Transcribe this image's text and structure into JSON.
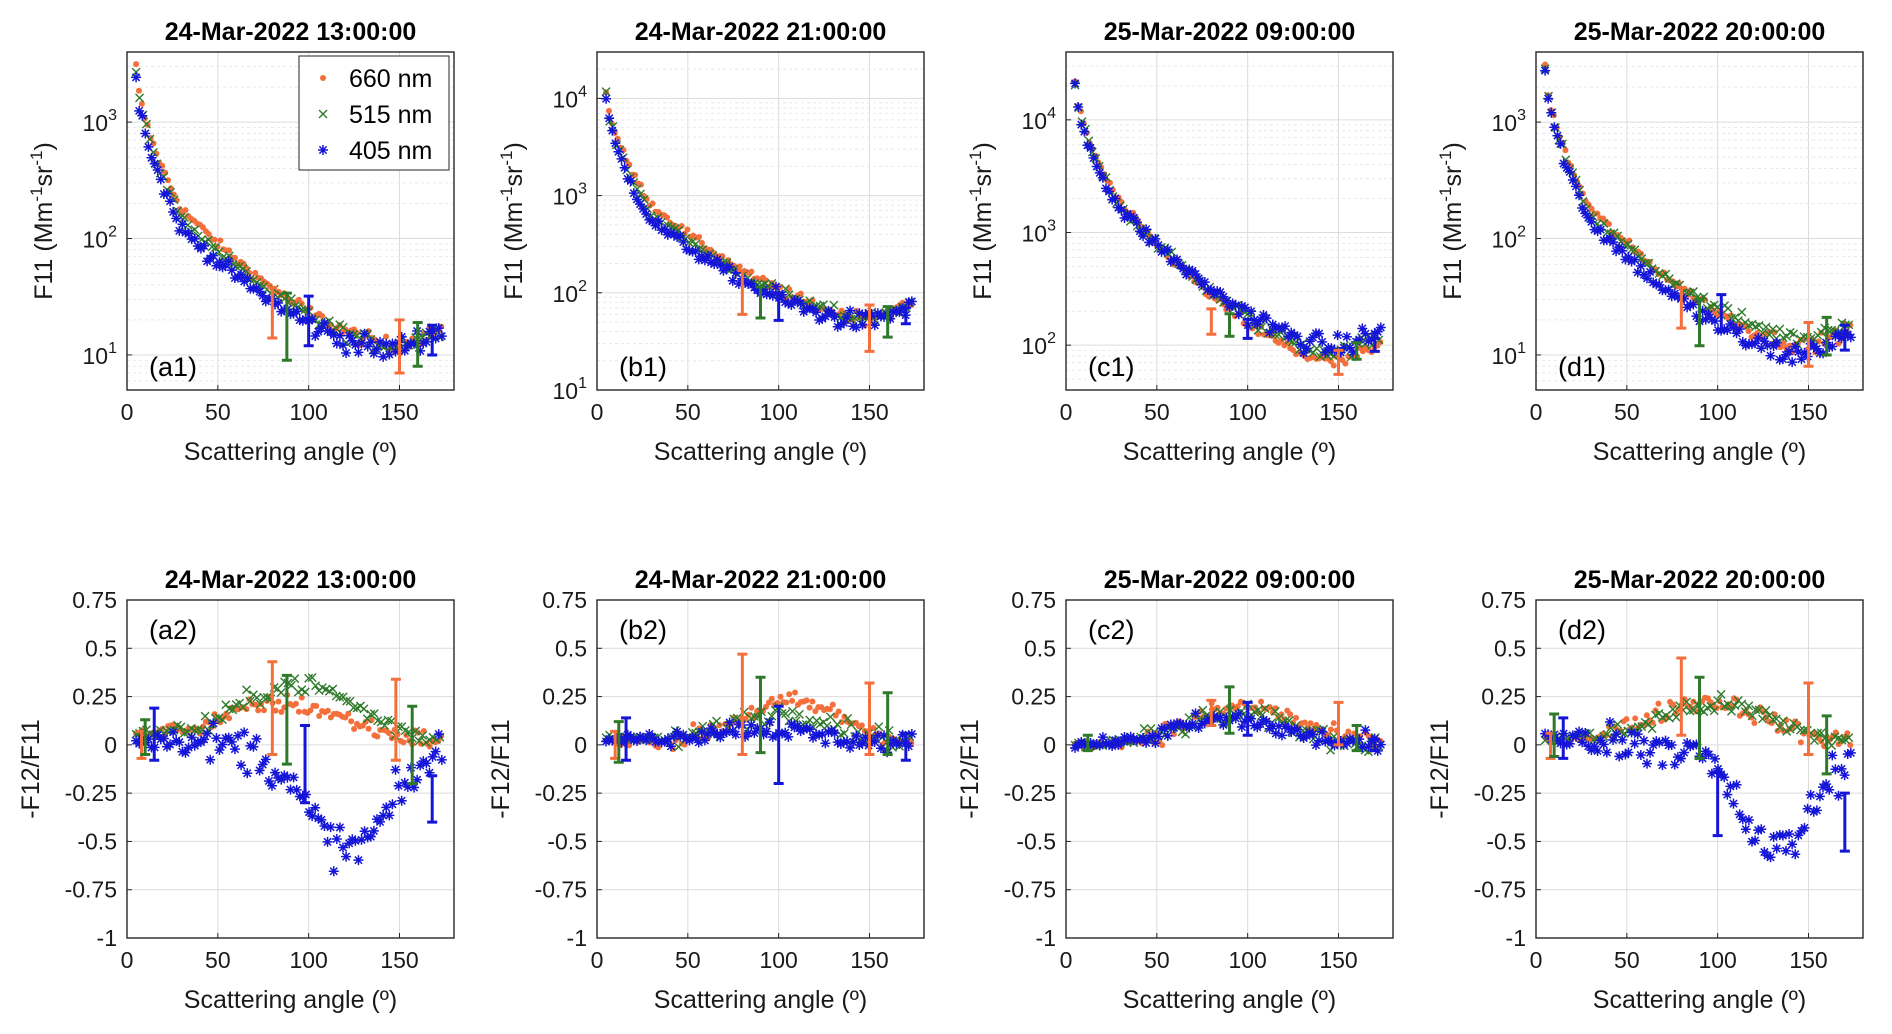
{
  "colors": {
    "660": "#f46f3b",
    "515": "#2f7a2a",
    "405": "#1515d8"
  },
  "legend": {
    "placement": "inside top-right of panel a1",
    "entries": [
      {
        "label": "660 nm",
        "marker": "dot",
        "color": "#f46f3b"
      },
      {
        "label": "515 nm",
        "marker": "x",
        "color": "#2f7a2a"
      },
      {
        "label": "405 nm",
        "marker": "asterisk",
        "color": "#1515d8"
      }
    ]
  },
  "chart_data": [
    {
      "type": "scatter",
      "id": "a1",
      "row": "top",
      "col": 0,
      "title": "24-Mar-2022 13:00:00",
      "panel_label": "(a1)",
      "xlabel": "Scattering angle (º)",
      "ylabel": "F11 (Mm-1sr-1)",
      "xlim": [
        0,
        180
      ],
      "ylog": true,
      "ylim": [
        5,
        4000
      ],
      "yticks": [
        10,
        100,
        1000
      ],
      "xticks": [
        0,
        50,
        100,
        150
      ],
      "grid": true,
      "legend": true,
      "series_params": {
        "660": {
          "y5": 3000,
          "y30": 180,
          "ymin": 12,
          "amin": 150
        },
        "515": {
          "y5": 2800,
          "y30": 150,
          "ymin": 12,
          "amin": 148
        },
        "405": {
          "y5": 2600,
          "y30": 120,
          "ymin": 11,
          "amin": 145
        }
      },
      "errorbars": [
        {
          "series": "660",
          "x": 80,
          "y": 23,
          "lo": 14,
          "hi": 38
        },
        {
          "series": "515",
          "x": 88,
          "y": 19,
          "lo": 9,
          "hi": 34
        },
        {
          "series": "405",
          "x": 100,
          "y": 20,
          "lo": 12,
          "hi": 32
        },
        {
          "series": "660",
          "x": 150,
          "y": 13,
          "lo": 7,
          "hi": 20
        },
        {
          "series": "515",
          "x": 160,
          "y": 13,
          "lo": 8,
          "hi": 19
        },
        {
          "series": "405",
          "x": 168,
          "y": 14,
          "lo": 10,
          "hi": 18
        }
      ]
    },
    {
      "type": "scatter",
      "id": "b1",
      "row": "top",
      "col": 1,
      "title": "24-Mar-2022 21:00:00",
      "panel_label": "(b1)",
      "xlabel": "Scattering angle (º)",
      "ylabel": "F11 (Mm-1sr-1)",
      "xlim": [
        0,
        180
      ],
      "ylog": true,
      "ylim": [
        10,
        30000
      ],
      "yticks": [
        10,
        100,
        1000,
        10000
      ],
      "xticks": [
        0,
        50,
        100,
        150
      ],
      "grid": true,
      "legend": false,
      "series_params": {
        "660": {
          "y5": 12000,
          "y30": 800,
          "ymin": 55,
          "amin": 150
        },
        "515": {
          "y5": 11000,
          "y30": 650,
          "ymin": 55,
          "amin": 150
        },
        "405": {
          "y5": 10000,
          "y30": 550,
          "ymin": 50,
          "amin": 148
        }
      },
      "errorbars": [
        {
          "series": "660",
          "x": 80,
          "y": 100,
          "lo": 60,
          "hi": 170
        },
        {
          "series": "515",
          "x": 90,
          "y": 80,
          "lo": 55,
          "hi": 115
        },
        {
          "series": "405",
          "x": 100,
          "y": 75,
          "lo": 52,
          "hi": 100
        },
        {
          "series": "660",
          "x": 150,
          "y": 45,
          "lo": 25,
          "hi": 75
        },
        {
          "series": "515",
          "x": 160,
          "y": 52,
          "lo": 35,
          "hi": 72
        },
        {
          "series": "405",
          "x": 170,
          "y": 58,
          "lo": 48,
          "hi": 70
        }
      ]
    },
    {
      "type": "scatter",
      "id": "c1",
      "row": "top",
      "col": 2,
      "title": "25-Mar-2022 09:00:00",
      "panel_label": "(c1)",
      "xlabel": "Scattering angle (º)",
      "ylabel": "F11 (Mm-1sr-1)",
      "xlim": [
        0,
        180
      ],
      "ylog": true,
      "ylim": [
        40,
        40000
      ],
      "yticks": [
        100,
        1000,
        10000
      ],
      "xticks": [
        0,
        50,
        100,
        150
      ],
      "grid": true,
      "legend": false,
      "series_params": {
        "660": {
          "y5": 22000,
          "y30": 1800,
          "ymin": 70,
          "amin": 150
        },
        "515": {
          "y5": 21000,
          "y30": 1700,
          "ymin": 85,
          "amin": 150
        },
        "405": {
          "y5": 20000,
          "y30": 1600,
          "ymin": 95,
          "amin": 150
        }
      },
      "errorbars": [
        {
          "series": "660",
          "x": 80,
          "y": 170,
          "lo": 125,
          "hi": 210
        },
        {
          "series": "515",
          "x": 90,
          "y": 150,
          "lo": 120,
          "hi": 190
        },
        {
          "series": "405",
          "x": 100,
          "y": 140,
          "lo": 115,
          "hi": 170
        },
        {
          "series": "660",
          "x": 150,
          "y": 68,
          "lo": 55,
          "hi": 90
        },
        {
          "series": "515",
          "x": 160,
          "y": 88,
          "lo": 75,
          "hi": 105
        },
        {
          "series": "405",
          "x": 170,
          "y": 100,
          "lo": 88,
          "hi": 115
        }
      ]
    },
    {
      "type": "scatter",
      "id": "d1",
      "row": "top",
      "col": 3,
      "title": "25-Mar-2022 20:00:00",
      "panel_label": "(d1)",
      "xlabel": "Scattering angle (º)",
      "ylabel": "F11 (Mm-1sr-1)",
      "xlim": [
        0,
        180
      ],
      "ylog": true,
      "ylim": [
        5,
        4000
      ],
      "yticks": [
        10,
        100,
        1000
      ],
      "xticks": [
        0,
        50,
        100,
        150
      ],
      "grid": true,
      "legend": false,
      "series_params": {
        "660": {
          "y5": 3000,
          "y30": 180,
          "ymin": 12,
          "amin": 150
        },
        "515": {
          "y5": 2900,
          "y30": 160,
          "ymin": 14,
          "amin": 148
        },
        "405": {
          "y5": 2800,
          "y30": 140,
          "ymin": 10,
          "amin": 145
        }
      },
      "errorbars": [
        {
          "series": "660",
          "x": 80,
          "y": 26,
          "lo": 17,
          "hi": 38
        },
        {
          "series": "515",
          "x": 90,
          "y": 21,
          "lo": 12,
          "hi": 30
        },
        {
          "series": "405",
          "x": 102,
          "y": 24,
          "lo": 16,
          "hi": 33
        },
        {
          "series": "660",
          "x": 150,
          "y": 13,
          "lo": 8,
          "hi": 19
        },
        {
          "series": "515",
          "x": 160,
          "y": 15,
          "lo": 10,
          "hi": 21
        },
        {
          "series": "405",
          "x": 170,
          "y": 14,
          "lo": 11,
          "hi": 18
        }
      ]
    },
    {
      "type": "scatter",
      "id": "a2",
      "row": "bottom",
      "col": 0,
      "title": "24-Mar-2022 13:00:00",
      "panel_label": "(a2)",
      "xlabel": "Scattering angle (º)",
      "ylabel": "-F12/F11",
      "xlim": [
        0,
        180
      ],
      "ylog": false,
      "ylim": [
        -1,
        0.75
      ],
      "yticks": [
        -1,
        -0.75,
        -0.5,
        -0.25,
        0,
        0.25,
        0.5,
        0.75
      ],
      "xticks": [
        0,
        50,
        100,
        150
      ],
      "grid": true,
      "legend": false,
      "series_params": {
        "660": {
          "peak": 0.2,
          "apeak": 85,
          "width": 55,
          "base": 0.04
        },
        "515": {
          "peak": 0.3,
          "apeak": 95,
          "width": 50,
          "base": 0.05
        },
        "405": {
          "peak": -0.6,
          "apeak": 125,
          "width": 35,
          "base": 0.03
        }
      },
      "errorbars": [
        {
          "series": "660",
          "x": 8,
          "y": 0.0,
          "lo": -0.07,
          "hi": 0.07
        },
        {
          "series": "515",
          "x": 10,
          "y": 0.05,
          "lo": -0.05,
          "hi": 0.13
        },
        {
          "series": "405",
          "x": 15,
          "y": 0.05,
          "lo": -0.08,
          "hi": 0.19
        },
        {
          "series": "660",
          "x": 80,
          "y": 0.18,
          "lo": -0.05,
          "hi": 0.43
        },
        {
          "series": "515",
          "x": 88,
          "y": 0.12,
          "lo": -0.1,
          "hi": 0.36
        },
        {
          "series": "405",
          "x": 98,
          "y": -0.05,
          "lo": -0.3,
          "hi": 0.1
        },
        {
          "series": "660",
          "x": 148,
          "y": 0.1,
          "lo": -0.08,
          "hi": 0.34
        },
        {
          "series": "515",
          "x": 157,
          "y": 0.05,
          "lo": -0.2,
          "hi": 0.2
        },
        {
          "series": "405",
          "x": 168,
          "y": -0.28,
          "lo": -0.4,
          "hi": -0.16
        }
      ]
    },
    {
      "type": "scatter",
      "id": "b2",
      "row": "bottom",
      "col": 1,
      "title": "24-Mar-2022 21:00:00",
      "panel_label": "(b2)",
      "xlabel": "Scattering angle (º)",
      "ylabel": "-F12/F11",
      "xlim": [
        0,
        180
      ],
      "ylog": false,
      "ylim": [
        -1,
        0.75
      ],
      "yticks": [
        -1,
        -0.75,
        -0.5,
        -0.25,
        0,
        0.25,
        0.5,
        0.75
      ],
      "xticks": [
        0,
        50,
        100,
        150
      ],
      "grid": true,
      "legend": false,
      "series_params": {
        "660": {
          "peak": 0.22,
          "apeak": 110,
          "width": 45,
          "base": 0.02
        },
        "515": {
          "peak": 0.16,
          "apeak": 105,
          "width": 45,
          "base": 0.03
        },
        "405": {
          "peak": 0.08,
          "apeak": 85,
          "width": 50,
          "base": 0.02
        }
      },
      "errorbars": [
        {
          "series": "660",
          "x": 10,
          "y": 0.0,
          "lo": -0.07,
          "hi": 0.07
        },
        {
          "series": "515",
          "x": 12,
          "y": 0.02,
          "lo": -0.09,
          "hi": 0.12
        },
        {
          "series": "405",
          "x": 16,
          "y": 0.03,
          "lo": -0.08,
          "hi": 0.14
        },
        {
          "series": "660",
          "x": 80,
          "y": 0.2,
          "lo": -0.05,
          "hi": 0.47
        },
        {
          "series": "515",
          "x": 90,
          "y": 0.14,
          "lo": -0.04,
          "hi": 0.35
        },
        {
          "series": "405",
          "x": 100,
          "y": 0.05,
          "lo": -0.2,
          "hi": 0.2
        },
        {
          "series": "660",
          "x": 150,
          "y": 0.1,
          "lo": -0.05,
          "hi": 0.32
        },
        {
          "series": "515",
          "x": 160,
          "y": 0.08,
          "lo": -0.05,
          "hi": 0.27
        },
        {
          "series": "405",
          "x": 170,
          "y": 0.0,
          "lo": -0.08,
          "hi": 0.06
        }
      ]
    },
    {
      "type": "scatter",
      "id": "c2",
      "row": "bottom",
      "col": 2,
      "title": "25-Mar-2022 09:00:00",
      "panel_label": "(c2)",
      "xlabel": "Scattering angle (º)",
      "ylabel": "-F12/F11",
      "xlim": [
        0,
        180
      ],
      "ylog": false,
      "ylim": [
        -1,
        0.75
      ],
      "yticks": [
        -1,
        -0.75,
        -0.5,
        -0.25,
        0,
        0.25,
        0.5,
        0.75
      ],
      "xticks": [
        0,
        50,
        100,
        150
      ],
      "grid": true,
      "legend": false,
      "series_params": {
        "660": {
          "peak": 0.2,
          "apeak": 100,
          "width": 45,
          "base": 0.0
        },
        "515": {
          "peak": 0.16,
          "apeak": 95,
          "width": 45,
          "base": 0.0
        },
        "405": {
          "peak": 0.13,
          "apeak": 90,
          "width": 45,
          "base": 0.0
        }
      },
      "errorbars": [
        {
          "series": "515",
          "x": 12,
          "y": 0.01,
          "lo": -0.03,
          "hi": 0.05
        },
        {
          "series": "660",
          "x": 80,
          "y": 0.16,
          "lo": 0.1,
          "hi": 0.23
        },
        {
          "series": "515",
          "x": 90,
          "y": 0.16,
          "lo": 0.06,
          "hi": 0.3
        },
        {
          "series": "405",
          "x": 100,
          "y": 0.12,
          "lo": 0.05,
          "hi": 0.22
        },
        {
          "series": "660",
          "x": 150,
          "y": 0.12,
          "lo": 0.0,
          "hi": 0.22
        },
        {
          "series": "515",
          "x": 160,
          "y": 0.04,
          "lo": -0.03,
          "hi": 0.1
        },
        {
          "series": "405",
          "x": 170,
          "y": 0.0,
          "lo": -0.03,
          "hi": 0.03
        }
      ]
    },
    {
      "type": "scatter",
      "id": "d2",
      "row": "bottom",
      "col": 3,
      "title": "25-Mar-2022 20:00:00",
      "panel_label": "(d2)",
      "xlabel": "Scattering angle (º)",
      "ylabel": "-F12/F11",
      "xlim": [
        0,
        180
      ],
      "ylog": false,
      "ylim": [
        -1,
        0.75
      ],
      "yticks": [
        -1,
        -0.75,
        -0.5,
        -0.25,
        0,
        0.25,
        0.5,
        0.75
      ],
      "xticks": [
        0,
        50,
        100,
        150
      ],
      "grid": true,
      "legend": false,
      "series_params": {
        "660": {
          "peak": 0.22,
          "apeak": 95,
          "width": 50,
          "base": 0.02
        },
        "515": {
          "peak": 0.2,
          "apeak": 100,
          "width": 50,
          "base": 0.03
        },
        "405": {
          "peak": -0.65,
          "apeak": 135,
          "width": 30,
          "base": 0.03
        }
      },
      "errorbars": [
        {
          "series": "660",
          "x": 8,
          "y": 0.0,
          "lo": -0.07,
          "hi": 0.06
        },
        {
          "series": "515",
          "x": 10,
          "y": 0.05,
          "lo": -0.06,
          "hi": 0.16
        },
        {
          "series": "405",
          "x": 15,
          "y": 0.03,
          "lo": -0.07,
          "hi": 0.14
        },
        {
          "series": "660",
          "x": 80,
          "y": 0.2,
          "lo": 0.05,
          "hi": 0.45
        },
        {
          "series": "515",
          "x": 90,
          "y": 0.15,
          "lo": -0.07,
          "hi": 0.35
        },
        {
          "series": "405",
          "x": 100,
          "y": -0.3,
          "lo": -0.47,
          "hi": -0.14
        },
        {
          "series": "660",
          "x": 150,
          "y": 0.15,
          "lo": -0.05,
          "hi": 0.32
        },
        {
          "series": "515",
          "x": 160,
          "y": 0.0,
          "lo": -0.15,
          "hi": 0.15
        },
        {
          "series": "405",
          "x": 170,
          "y": -0.4,
          "lo": -0.55,
          "hi": -0.25
        }
      ]
    }
  ]
}
